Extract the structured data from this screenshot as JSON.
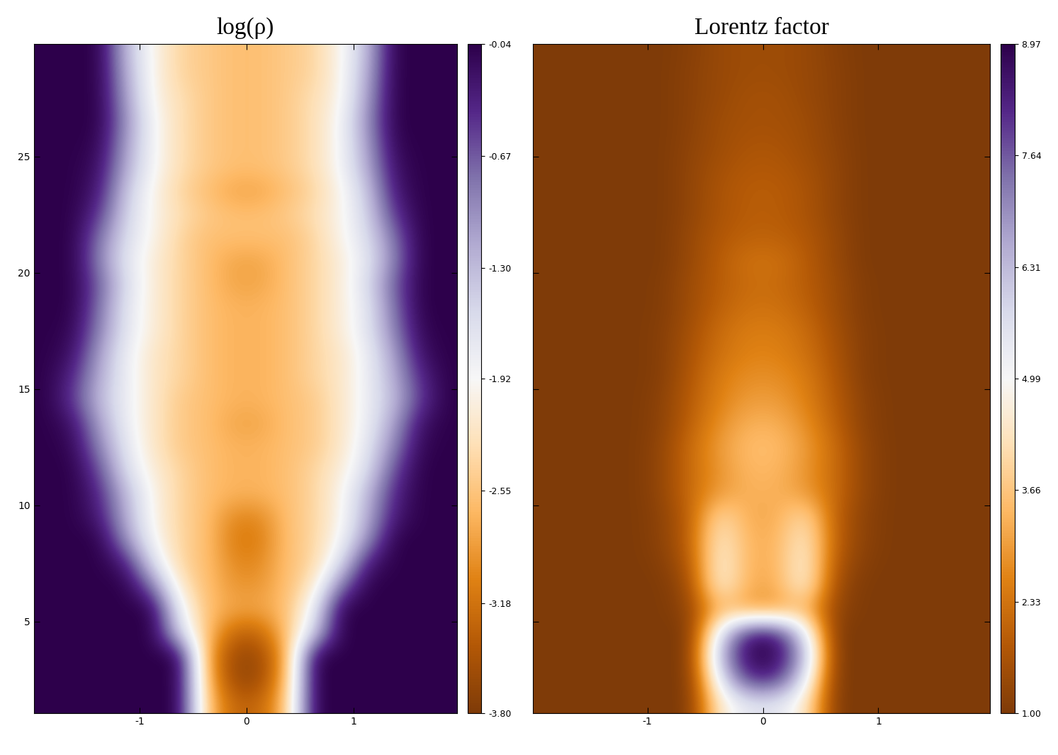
{
  "chart_data": [
    {
      "type": "heatmap",
      "title": "log(ρ)",
      "x": [
        -1.875,
        -1.625,
        -1.375,
        -1.125,
        -0.875,
        -0.625,
        -0.375,
        -0.125,
        0.125,
        0.375,
        0.625,
        0.875,
        1.125,
        1.375,
        1.625,
        1.875
      ],
      "y": [
        1.5,
        2.5,
        3.5,
        4.5,
        5.5,
        6.5,
        7.5,
        8.5,
        9.5,
        10.5,
        11.5,
        12.5,
        13.5,
        14.5,
        15.5,
        16.5,
        17.5,
        18.5,
        19.5,
        20.5,
        21.5,
        22.5,
        23.5,
        24.5,
        25.5,
        26.5,
        27.5,
        28.5,
        29.5
      ],
      "cells": [
        [
          -0.04,
          -0.04,
          -0.04,
          -0.04,
          -0.04,
          -0.04,
          -2.6,
          -3.3,
          -3.3,
          -2.6,
          -0.04,
          -0.04,
          -0.04,
          -0.04,
          -0.04,
          -0.04
        ],
        [
          -0.04,
          -0.04,
          -0.04,
          -0.04,
          -0.04,
          -0.04,
          -2.7,
          -3.6,
          -3.6,
          -2.7,
          -0.04,
          -0.04,
          -0.04,
          -0.04,
          -0.04,
          -0.04
        ],
        [
          -0.04,
          -0.04,
          -0.04,
          -0.04,
          -0.04,
          -0.04,
          -2.8,
          -3.6,
          -3.6,
          -2.8,
          -0.04,
          -0.04,
          -0.04,
          -0.04,
          -0.04,
          -0.04
        ],
        [
          -0.04,
          -0.04,
          -0.04,
          -0.04,
          -0.04,
          -1.5,
          -2.6,
          -3.3,
          -3.3,
          -2.6,
          -1.5,
          -0.04,
          -0.04,
          -0.04,
          -0.04,
          -0.04
        ],
        [
          -0.04,
          -0.04,
          -0.04,
          -0.04,
          -0.04,
          -1.8,
          -2.6,
          -2.8,
          -2.8,
          -2.6,
          -1.8,
          -0.04,
          -0.04,
          -0.04,
          -0.04,
          -0.04
        ],
        [
          -0.04,
          -0.04,
          -0.04,
          -0.04,
          -0.8,
          -2.2,
          -2.6,
          -2.9,
          -2.9,
          -2.6,
          -2.2,
          -0.8,
          -0.04,
          -0.04,
          -0.04,
          -0.04
        ],
        [
          -0.04,
          -0.04,
          -0.04,
          -0.3,
          -1.6,
          -2.4,
          -2.6,
          -3.0,
          -3.0,
          -2.6,
          -2.4,
          -1.6,
          -0.3,
          -0.04,
          -0.04,
          -0.04
        ],
        [
          -0.04,
          -0.04,
          -0.04,
          -1.0,
          -1.9,
          -2.4,
          -2.6,
          -3.1,
          -3.1,
          -2.6,
          -2.4,
          -1.9,
          -1.0,
          -0.04,
          -0.04,
          -0.04
        ],
        [
          -0.04,
          -0.04,
          -0.3,
          -1.2,
          -2.0,
          -2.4,
          -2.6,
          -3.0,
          -3.0,
          -2.6,
          -2.4,
          -2.0,
          -1.2,
          -0.3,
          -0.04,
          -0.04
        ],
        [
          -0.04,
          -0.04,
          -0.4,
          -1.3,
          -2.0,
          -2.4,
          -2.6,
          -2.7,
          -2.7,
          -2.6,
          -2.4,
          -2.0,
          -1.3,
          -0.4,
          -0.04,
          -0.04
        ],
        [
          -0.04,
          -0.04,
          -0.6,
          -1.6,
          -2.1,
          -2.4,
          -2.6,
          -2.7,
          -2.7,
          -2.6,
          -2.4,
          -2.1,
          -1.6,
          -0.6,
          -0.04,
          -0.04
        ],
        [
          -0.04,
          -0.1,
          -0.9,
          -1.7,
          -2.2,
          -2.5,
          -2.6,
          -2.7,
          -2.7,
          -2.6,
          -2.5,
          -2.2,
          -1.7,
          -0.9,
          -0.1,
          -0.04
        ],
        [
          -0.04,
          -0.2,
          -1.1,
          -1.8,
          -2.2,
          -2.5,
          -2.6,
          -2.8,
          -2.8,
          -2.6,
          -2.5,
          -2.2,
          -1.8,
          -1.1,
          -0.2,
          -0.04
        ],
        [
          -0.04,
          -0.5,
          -1.3,
          -1.8,
          -2.2,
          -2.5,
          -2.6,
          -2.7,
          -2.7,
          -2.6,
          -2.5,
          -2.2,
          -1.8,
          -1.3,
          -0.5,
          -0.04
        ],
        [
          -0.04,
          -0.4,
          -1.2,
          -1.8,
          -2.2,
          -2.4,
          -2.6,
          -2.7,
          -2.7,
          -2.6,
          -2.4,
          -2.2,
          -1.8,
          -1.2,
          -0.4,
          -0.04
        ],
        [
          -0.04,
          -0.2,
          -1.1,
          -1.8,
          -2.2,
          -2.4,
          -2.6,
          -2.7,
          -2.7,
          -2.6,
          -2.4,
          -2.2,
          -1.8,
          -1.1,
          -0.2,
          -0.04
        ],
        [
          -0.04,
          -0.1,
          -0.9,
          -1.7,
          -2.1,
          -2.4,
          -2.6,
          -2.7,
          -2.7,
          -2.6,
          -2.4,
          -2.1,
          -1.7,
          -0.9,
          -0.1,
          -0.04
        ],
        [
          -0.04,
          -0.04,
          -0.8,
          -1.7,
          -2.1,
          -2.4,
          -2.6,
          -2.7,
          -2.7,
          -2.6,
          -2.4,
          -2.1,
          -1.7,
          -0.8,
          -0.04,
          -0.04
        ],
        [
          -0.04,
          -0.04,
          -0.7,
          -1.6,
          -2.1,
          -2.4,
          -2.6,
          -2.8,
          -2.8,
          -2.6,
          -2.4,
          -2.1,
          -1.6,
          -0.7,
          -0.04,
          -0.04
        ],
        [
          -0.04,
          -0.04,
          -0.9,
          -1.7,
          -2.1,
          -2.4,
          -2.6,
          -2.8,
          -2.8,
          -2.6,
          -2.4,
          -2.1,
          -1.7,
          -0.9,
          -0.04,
          -0.04
        ],
        [
          -0.04,
          -0.04,
          -0.8,
          -1.6,
          -2.0,
          -2.4,
          -2.6,
          -2.6,
          -2.6,
          -2.6,
          -2.4,
          -2.0,
          -1.6,
          -0.8,
          -0.04,
          -0.04
        ],
        [
          -0.04,
          -0.04,
          -0.5,
          -1.5,
          -2.0,
          -2.3,
          -2.5,
          -2.6,
          -2.6,
          -2.5,
          -2.3,
          -2.0,
          -1.5,
          -0.5,
          -0.04,
          -0.04
        ],
        [
          -0.04,
          -0.04,
          -0.3,
          -1.4,
          -2.0,
          -2.4,
          -2.6,
          -2.8,
          -2.8,
          -2.6,
          -2.4,
          -2.0,
          -1.4,
          -0.3,
          -0.04,
          -0.04
        ],
        [
          -0.04,
          -0.04,
          -0.2,
          -1.2,
          -1.9,
          -2.3,
          -2.5,
          -2.6,
          -2.6,
          -2.5,
          -2.3,
          -1.9,
          -1.2,
          -0.2,
          -0.04,
          -0.04
        ],
        [
          -0.04,
          -0.04,
          -0.1,
          -1.1,
          -1.9,
          -2.3,
          -2.5,
          -2.6,
          -2.6,
          -2.5,
          -2.3,
          -1.9,
          -1.1,
          -0.1,
          -0.04,
          -0.04
        ],
        [
          -0.04,
          -0.04,
          -0.04,
          -1.0,
          -1.9,
          -2.3,
          -2.5,
          -2.6,
          -2.6,
          -2.5,
          -2.3,
          -1.9,
          -1.0,
          -0.04,
          -0.04,
          -0.04
        ],
        [
          -0.04,
          -0.04,
          -0.04,
          -1.1,
          -2.0,
          -2.3,
          -2.5,
          -2.6,
          -2.6,
          -2.5,
          -2.3,
          -2.0,
          -1.1,
          -0.04,
          -0.04,
          -0.04
        ],
        [
          -0.04,
          -0.04,
          -0.04,
          -1.2,
          -2.0,
          -2.4,
          -2.5,
          -2.6,
          -2.6,
          -2.5,
          -2.4,
          -2.0,
          -1.2,
          -0.04,
          -0.04,
          -0.04
        ],
        [
          -0.04,
          -0.04,
          -0.04,
          -1.3,
          -2.0,
          -2.4,
          -2.5,
          -2.6,
          -2.6,
          -2.5,
          -2.4,
          -2.0,
          -1.3,
          -0.04,
          -0.04,
          -0.04
        ]
      ],
      "xlim": [
        -1.99,
        1.97
      ],
      "ylim": [
        1.04,
        29.85
      ],
      "xticks": [
        -1,
        0,
        1
      ],
      "yticks": [
        5,
        10,
        15,
        20,
        25
      ],
      "colorbar_range": [
        -3.8,
        -0.04
      ],
      "colorbar_ticks": [
        -0.04,
        -0.67,
        {
          "value": -1.3,
          "label": "-1.30"
        },
        -1.92,
        -2.55,
        -3.18,
        {
          "value": -3.8,
          "label": "-3.80"
        }
      ]
    },
    {
      "type": "heatmap",
      "title": "Lorentz factor",
      "x": [
        -1.875,
        -1.625,
        -1.375,
        -1.125,
        -0.875,
        -0.625,
        -0.375,
        -0.125,
        0.125,
        0.375,
        0.625,
        0.875,
        1.125,
        1.375,
        1.625,
        1.875
      ],
      "y": [
        1.5,
        2.5,
        3.5,
        4.5,
        5.5,
        6.5,
        7.5,
        8.5,
        9.5,
        10.5,
        11.5,
        12.5,
        13.5,
        14.5,
        15.5,
        16.5,
        17.5,
        18.5,
        19.5,
        20.5,
        21.5,
        22.5,
        23.5,
        24.5,
        25.5,
        26.5,
        27.5,
        28.5,
        29.5
      ],
      "cells": [
        [
          1,
          1,
          1,
          1,
          1,
          1,
          4.5,
          5.5,
          5.5,
          4.5,
          1,
          1,
          1,
          1,
          1,
          1
        ],
        [
          1,
          1,
          1,
          1,
          1,
          1,
          5.5,
          8.2,
          8.2,
          5.5,
          1,
          1,
          1,
          1,
          1,
          1
        ],
        [
          1,
          1,
          1,
          1,
          1,
          1,
          6.5,
          8.9,
          8.9,
          6.5,
          1,
          1,
          1,
          1,
          1,
          1
        ],
        [
          1,
          1,
          1,
          1,
          1,
          1,
          5.5,
          8.5,
          8.5,
          5.5,
          1,
          1,
          1,
          1,
          1,
          1
        ],
        [
          1,
          1,
          1,
          1,
          1,
          1.3,
          3.5,
          3.0,
          3.0,
          3.5,
          1.3,
          1,
          1,
          1,
          1,
          1
        ],
        [
          1,
          1,
          1,
          1,
          1,
          1.5,
          4.8,
          3.2,
          3.2,
          4.8,
          1.5,
          1,
          1,
          1,
          1,
          1
        ],
        [
          1,
          1,
          1,
          1,
          1.1,
          1.8,
          4.8,
          3.3,
          3.3,
          4.8,
          1.8,
          1.1,
          1,
          1,
          1,
          1
        ],
        [
          1,
          1,
          1,
          1,
          1.2,
          2.0,
          4.6,
          3.3,
          3.3,
          4.6,
          2.0,
          1.2,
          1,
          1,
          1,
          1
        ],
        [
          1,
          1,
          1,
          1,
          1.2,
          2.0,
          4.2,
          3.2,
          3.2,
          4.2,
          2.0,
          1.2,
          1,
          1,
          1,
          1
        ],
        [
          1,
          1,
          1,
          1,
          1.3,
          2.2,
          3.0,
          3.3,
          3.3,
          3.0,
          2.2,
          1.3,
          1,
          1,
          1,
          1
        ],
        [
          1,
          1,
          1,
          1,
          1.3,
          2.2,
          2.9,
          3.4,
          3.4,
          2.9,
          2.2,
          1.3,
          1,
          1,
          1,
          1
        ],
        [
          1,
          1,
          1,
          1,
          1.3,
          2.2,
          3.0,
          3.5,
          3.5,
          3.0,
          2.2,
          1.3,
          1,
          1,
          1,
          1
        ],
        [
          1,
          1,
          1,
          1,
          1.2,
          2.0,
          2.8,
          3.3,
          3.3,
          2.8,
          2.0,
          1.2,
          1,
          1,
          1,
          1
        ],
        [
          1,
          1,
          1,
          1,
          1.2,
          1.9,
          2.6,
          3.0,
          3.0,
          2.6,
          1.9,
          1.2,
          1,
          1,
          1,
          1
        ],
        [
          1,
          1,
          1,
          1,
          1.1,
          1.8,
          2.5,
          2.8,
          2.8,
          2.5,
          1.8,
          1.1,
          1,
          1,
          1,
          1
        ],
        [
          1,
          1,
          1,
          1,
          1.1,
          1.7,
          2.3,
          2.6,
          2.6,
          2.3,
          1.7,
          1.1,
          1,
          1,
          1,
          1
        ],
        [
          1,
          1,
          1,
          1,
          1.1,
          1.6,
          2.2,
          2.5,
          2.5,
          2.2,
          1.6,
          1.1,
          1,
          1,
          1,
          1
        ],
        [
          1,
          1,
          1,
          1,
          1.05,
          1.5,
          2.0,
          2.3,
          2.3,
          2.0,
          1.5,
          1.05,
          1,
          1,
          1,
          1
        ],
        [
          1,
          1,
          1,
          1,
          1.05,
          1.5,
          1.9,
          2.2,
          2.2,
          1.9,
          1.5,
          1.05,
          1,
          1,
          1,
          1
        ],
        [
          1,
          1,
          1,
          1,
          1,
          1.4,
          1.9,
          2.3,
          2.3,
          1.9,
          1.4,
          1,
          1,
          1,
          1,
          1
        ],
        [
          1,
          1,
          1,
          1,
          1,
          1.4,
          1.8,
          2.0,
          2.0,
          1.8,
          1.4,
          1,
          1,
          1,
          1,
          1
        ],
        [
          1,
          1,
          1,
          1,
          1,
          1.3,
          1.7,
          1.9,
          1.9,
          1.7,
          1.3,
          1,
          1,
          1,
          1,
          1
        ],
        [
          1,
          1,
          1,
          1,
          1,
          1.3,
          1.7,
          1.9,
          1.9,
          1.7,
          1.3,
          1,
          1,
          1,
          1,
          1
        ],
        [
          1,
          1,
          1,
          1,
          1,
          1.3,
          1.6,
          1.8,
          1.8,
          1.6,
          1.3,
          1,
          1,
          1,
          1,
          1
        ],
        [
          1,
          1,
          1,
          1,
          1,
          1.25,
          1.5,
          1.7,
          1.7,
          1.5,
          1.25,
          1,
          1,
          1,
          1,
          1
        ],
        [
          1,
          1,
          1,
          1,
          1,
          1.2,
          1.5,
          1.6,
          1.6,
          1.5,
          1.2,
          1,
          1,
          1,
          1,
          1
        ],
        [
          1,
          1,
          1,
          1,
          1,
          1.2,
          1.4,
          1.6,
          1.6,
          1.4,
          1.2,
          1,
          1,
          1,
          1,
          1
        ],
        [
          1,
          1,
          1,
          1,
          1,
          1.2,
          1.4,
          1.5,
          1.5,
          1.4,
          1.2,
          1,
          1,
          1,
          1,
          1
        ],
        [
          1,
          1,
          1,
          1,
          1,
          1.15,
          1.4,
          1.5,
          1.5,
          1.4,
          1.15,
          1,
          1,
          1,
          1,
          1
        ]
      ],
      "xlim": [
        -1.99,
        1.97
      ],
      "ylim": [
        1.04,
        29.85
      ],
      "xticks": [
        -1,
        0,
        1
      ],
      "yticks": [
        5,
        10,
        15,
        20,
        25
      ],
      "tick_labels": "x",
      "colorbar_range": [
        1.0,
        8.97
      ],
      "colorbar_ticks": [
        {
          "value": 1.0,
          "label": "1.00"
        },
        2.33,
        3.66,
        4.99,
        6.31,
        7.64,
        8.97
      ]
    }
  ]
}
